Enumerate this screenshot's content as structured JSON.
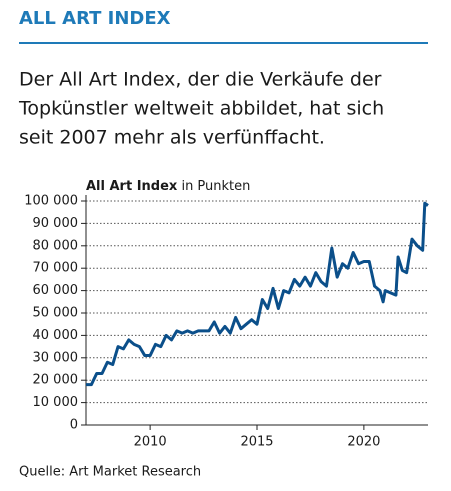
{
  "chart_data": {
    "type": "line",
    "header": "ALL ART INDEX",
    "subtitle": [
      "Der All Art Index, der die Verkäufe der",
      "Topkünstler weltweit abbildet, hat sich",
      "seit 2007 mehr als verfünffacht."
    ],
    "axis_label": "All Art Index",
    "axis_unit": "in Punkten",
    "source": "Quelle: Art Market Research",
    "x": [
      2007.0,
      2007.25,
      2007.5,
      2007.75,
      2008.0,
      2008.25,
      2008.5,
      2008.75,
      2009.0,
      2009.25,
      2009.5,
      2009.75,
      2010.0,
      2010.25,
      2010.5,
      2010.75,
      2011.0,
      2011.25,
      2011.5,
      2011.75,
      2012.0,
      2012.25,
      2012.5,
      2012.75,
      2013.0,
      2013.25,
      2013.5,
      2013.75,
      2014.0,
      2014.25,
      2014.5,
      2014.75,
      2015.0,
      2015.25,
      2015.5,
      2015.75,
      2016.0,
      2016.25,
      2016.5,
      2016.75,
      2017.0,
      2017.25,
      2017.5,
      2017.75,
      2018.0,
      2018.25,
      2018.5,
      2018.75,
      2019.0,
      2019.25,
      2019.5,
      2019.75,
      2020.0,
      2020.25,
      2020.5,
      2020.75,
      2020.9,
      2021.0,
      2021.25,
      2021.5,
      2021.6,
      2021.8,
      2022.0,
      2022.25,
      2022.5,
      2022.75,
      2022.85,
      2023.0
    ],
    "series": [
      {
        "name": "All Art Index",
        "color": "#0b4f8a",
        "values": [
          18000,
          18000,
          23000,
          23000,
          28000,
          27000,
          35000,
          34000,
          38000,
          36000,
          35000,
          31000,
          31000,
          36000,
          35000,
          40000,
          38000,
          42000,
          41000,
          42000,
          41000,
          42000,
          42000,
          42000,
          46000,
          41000,
          44000,
          41000,
          48000,
          43000,
          45000,
          47000,
          45000,
          56000,
          52000,
          61000,
          52000,
          60000,
          59000,
          65000,
          62000,
          66000,
          62000,
          68000,
          64000,
          62000,
          79000,
          66000,
          72000,
          70000,
          77000,
          72000,
          73000,
          73000,
          62000,
          60000,
          55000,
          60000,
          59000,
          58000,
          75000,
          69000,
          68000,
          83000,
          80000,
          78000,
          99000,
          98000
        ]
      }
    ],
    "xlim": [
      2007,
      2023
    ],
    "xticks": [
      2010,
      2015,
      2020
    ],
    "ylim": [
      0,
      100000
    ],
    "yticks": [
      0,
      {
        "value": 10000,
        "label": "10 000"
      },
      {
        "value": 20000,
        "label": "20 000"
      },
      {
        "value": 30000,
        "label": "30 000"
      },
      {
        "value": 40000,
        "label": "40 000"
      },
      {
        "value": 50000,
        "label": "50 000"
      },
      {
        "value": 60000,
        "label": "60 000"
      },
      {
        "value": 70000,
        "label": "70 000"
      },
      {
        "value": 80000,
        "label": "80 000"
      },
      {
        "value": 90000,
        "label": "90 000"
      },
      {
        "value": 100000,
        "label": "100 000"
      }
    ],
    "grid": true
  }
}
